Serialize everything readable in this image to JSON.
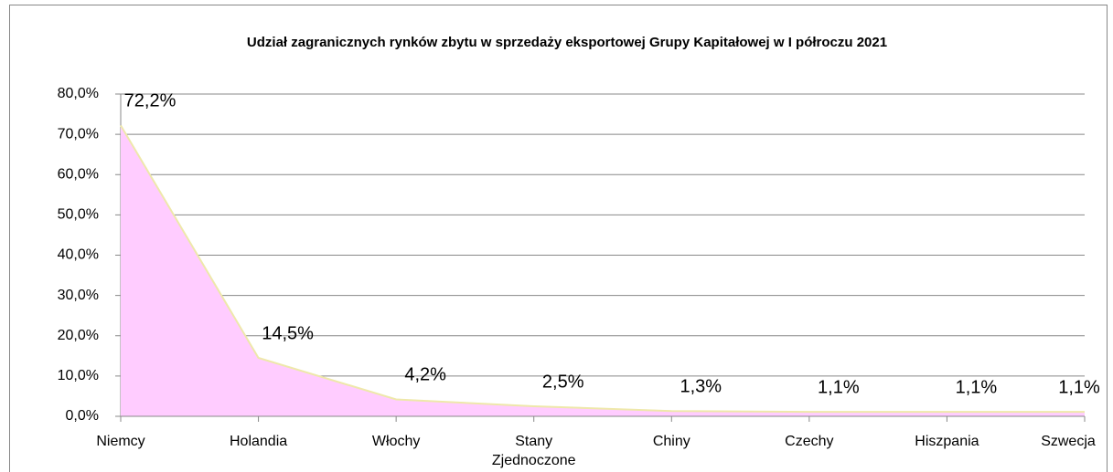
{
  "chart_data": {
    "type": "area",
    "title": "Udział zagranicznych rynków zbytu w sprzedaży eksportowej Grupy Kapitałowej  w I półroczu 2021",
    "categories": [
      "Niemcy",
      "Holandia",
      "Włochy",
      "Stany Zjednoczone",
      "Chiny",
      "Czechy",
      "Hiszpania",
      "Szwecja"
    ],
    "series": [
      {
        "name": null,
        "color": "#ffccff",
        "values": [
          72.2,
          14.5,
          4.2,
          2.5,
          1.3,
          1.1,
          1.1,
          1.1
        ],
        "value_labels": [
          "72,2%",
          "14,5%",
          "4,2%",
          "2,5%",
          "1,3%",
          "1,1%",
          "1,1%",
          "1,1%"
        ]
      }
    ],
    "ylim": [
      0,
      80
    ],
    "yticks": [
      {
        "value": 0,
        "label": "0,0%"
      },
      {
        "value": 10,
        "label": "10,0%"
      },
      {
        "value": 20,
        "label": "20,0%"
      },
      {
        "value": 30,
        "label": "30,0%"
      },
      {
        "value": 40,
        "label": "40,0%"
      },
      {
        "value": 50,
        "label": "50,0%"
      },
      {
        "value": 60,
        "label": "60,0%"
      },
      {
        "value": 70,
        "label": "70,0%"
      },
      {
        "value": 80,
        "label": "80,0%"
      }
    ],
    "grid": true
  }
}
